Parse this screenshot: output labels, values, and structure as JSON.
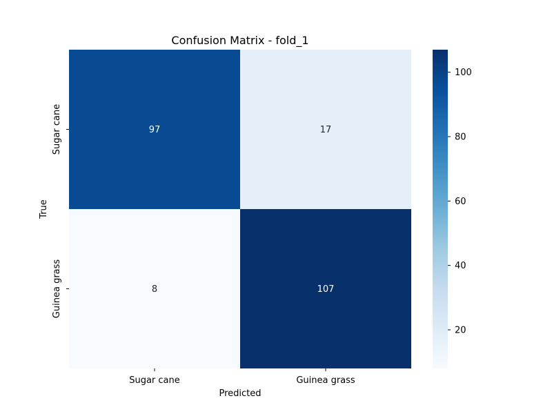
{
  "chart_data": {
    "type": "heatmap",
    "title": "Confusion Matrix - fold_1",
    "xlabel": "Predicted",
    "ylabel": "True",
    "x_categories": [
      "Sugar cane",
      "Guinea grass"
    ],
    "y_categories": [
      "Sugar cane",
      "Guinea grass"
    ],
    "values": [
      [
        97,
        17
      ],
      [
        8,
        107
      ]
    ],
    "colormap": "Blues",
    "vmin": 8,
    "vmax": 107,
    "colorbar_ticks": [
      20,
      40,
      60,
      80,
      100
    ],
    "colors": {
      "low": "#f7fbff",
      "high": "#08306b",
      "text_dark": "#262626",
      "text_light": "#ffffff"
    }
  }
}
